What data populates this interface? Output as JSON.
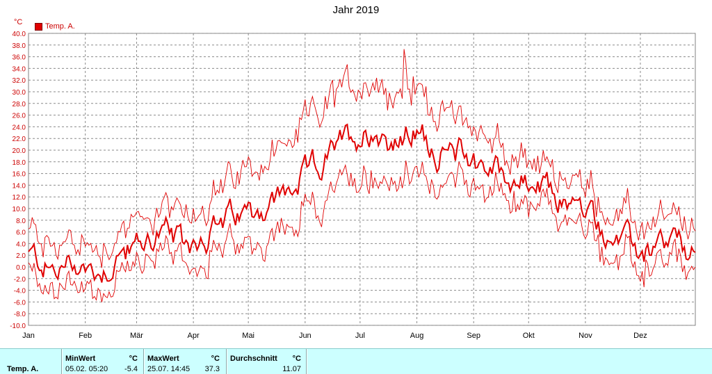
{
  "title": "Jahr 2019",
  "unit": "°C",
  "legend_label": "Temp. A.",
  "colors": {
    "series": "#e00000",
    "background": "#ffffff",
    "grid": "#808080",
    "stats_bg": "#ccffff"
  },
  "chart_data": {
    "type": "line",
    "title": "Jahr 2019",
    "ylabel": "°C",
    "ylim": [
      -10,
      40
    ],
    "y_ticks": [
      "40.0",
      "38.0",
      "36.0",
      "34.0",
      "32.0",
      "30.0",
      "28.0",
      "26.0",
      "24.0",
      "22.0",
      "20.0",
      "18.0",
      "16.0",
      "14.0",
      "12.0",
      "10.0",
      "8.0",
      "6.0",
      "4.0",
      "2.0",
      "0.0",
      "-2.0",
      "-4.0",
      "-6.0",
      "-8.0",
      "-10.0"
    ],
    "x_months": [
      "Jan",
      "Feb",
      "Mär",
      "Apr",
      "Mai",
      "Jun",
      "Jul",
      "Aug",
      "Sep",
      "Okt",
      "Nov",
      "Dez"
    ],
    "grid": true,
    "legend_position": "top-left",
    "series": [
      {
        "name": "Temp. A.",
        "approx_daily_mean": [
          [
            1,
            2
          ],
          [
            8,
            1
          ],
          [
            15,
            -1
          ],
          [
            22,
            0
          ],
          [
            29,
            1
          ],
          [
            36,
            -1
          ],
          [
            43,
            0
          ],
          [
            50,
            2
          ],
          [
            57,
            3
          ],
          [
            64,
            4
          ],
          [
            71,
            6
          ],
          [
            78,
            5
          ],
          [
            85,
            3
          ],
          [
            92,
            5
          ],
          [
            99,
            6
          ],
          [
            106,
            7
          ],
          [
            113,
            8
          ],
          [
            120,
            9
          ],
          [
            127,
            10
          ],
          [
            134,
            11
          ],
          [
            141,
            12
          ],
          [
            148,
            14
          ],
          [
            155,
            16
          ],
          [
            162,
            18
          ],
          [
            169,
            20
          ],
          [
            176,
            22
          ],
          [
            183,
            23
          ],
          [
            190,
            24
          ],
          [
            197,
            22
          ],
          [
            204,
            21
          ],
          [
            211,
            23
          ],
          [
            218,
            22
          ],
          [
            225,
            20
          ],
          [
            232,
            19
          ],
          [
            239,
            20
          ],
          [
            246,
            18
          ],
          [
            253,
            17
          ],
          [
            260,
            16
          ],
          [
            267,
            15
          ],
          [
            274,
            14
          ],
          [
            281,
            13
          ],
          [
            288,
            12
          ],
          [
            295,
            11
          ],
          [
            302,
            10
          ],
          [
            309,
            8
          ],
          [
            316,
            6
          ],
          [
            323,
            4
          ],
          [
            330,
            3
          ],
          [
            337,
            2
          ],
          [
            344,
            3
          ],
          [
            351,
            4
          ],
          [
            358,
            3
          ],
          [
            365,
            1
          ]
        ]
      }
    ]
  },
  "stats": {
    "row_label": "Temp. A.",
    "min": {
      "label": "MinWert",
      "unit": "°C",
      "datetime": "05.02. 05:20",
      "value": "-5.4"
    },
    "max": {
      "label": "MaxWert",
      "unit": "°C",
      "datetime": "25.07. 14:45",
      "value": "37.3"
    },
    "avg": {
      "label": "Durchschnitt",
      "unit": "°C",
      "value": "11.07"
    }
  }
}
